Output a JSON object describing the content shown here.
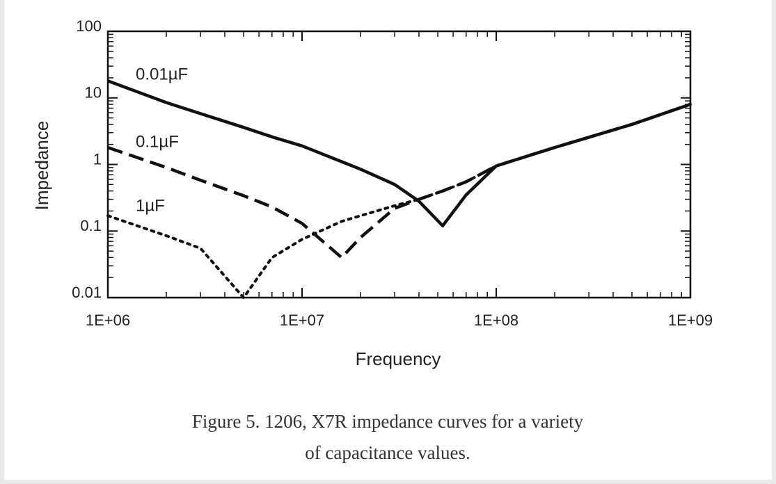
{
  "chart_data": {
    "type": "line",
    "xlabel": "Frequency",
    "ylabel": "Impedance",
    "caption": [
      "Figure 5. 1206, X7R impedance curves for a variety",
      "of capacitance values."
    ],
    "xscale": "log",
    "yscale": "log",
    "x": [
      1000000,
      2000000,
      3000000,
      5000000,
      7000000,
      10000000,
      16000000,
      20000000,
      30000000,
      40000000,
      53000000,
      70000000,
      100000000,
      200000000,
      500000000,
      1000000000
    ],
    "series": [
      {
        "name": "0.01µF",
        "color": "#111111",
        "dash": "solid",
        "values": [
          18,
          8.5,
          5.8,
          3.6,
          2.6,
          1.9,
          1.1,
          0.85,
          0.5,
          0.28,
          0.12,
          0.35,
          0.95,
          1.8,
          4,
          8
        ]
      },
      {
        "name": "0.1µF",
        "color": "#111111",
        "dash": "dashed",
        "values": [
          1.8,
          0.9,
          0.58,
          0.34,
          0.23,
          0.13,
          0.04,
          0.08,
          0.22,
          0.3,
          0.4,
          0.55,
          0.95,
          1.8,
          4,
          8
        ]
      },
      {
        "name": "1µF",
        "color": "#111111",
        "dash": "dotted",
        "values": [
          0.17,
          0.085,
          0.055,
          0.01,
          0.04,
          0.075,
          0.14,
          0.17,
          0.24,
          0.3,
          0.4,
          0.55,
          0.95,
          1.8,
          4,
          8
        ]
      }
    ],
    "xlim": [
      1000000,
      1000000000
    ],
    "ylim": [
      0.01,
      100
    ],
    "xticks": [
      {
        "value": 1000000,
        "label": "1E+06"
      },
      {
        "value": 10000000,
        "label": "1E+07"
      },
      {
        "value": 100000000,
        "label": "1E+08"
      },
      {
        "value": 1000000000,
        "label": "1E+09"
      }
    ],
    "yticks": [
      0.01,
      0.1,
      1,
      10,
      100
    ]
  }
}
